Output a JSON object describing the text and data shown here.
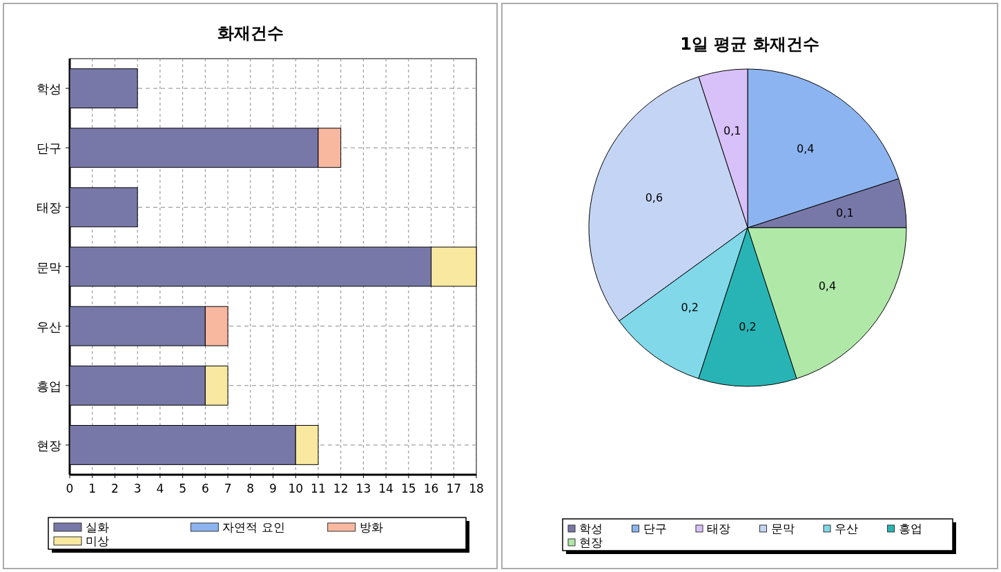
{
  "chart_data": [
    {
      "type": "bar",
      "orientation": "horizontal",
      "stacked": true,
      "title": "화재건수",
      "categories": [
        "학성",
        "단구",
        "태장",
        "문막",
        "우산",
        "흥업",
        "현장"
      ],
      "series": [
        {
          "name": "실화",
          "color": "#7878a8",
          "values": [
            3,
            11,
            3,
            16,
            6,
            6,
            10
          ]
        },
        {
          "name": "자연적 요인",
          "color": "#8cb4f0",
          "values": [
            0,
            0,
            0,
            0,
            0,
            0,
            0
          ]
        },
        {
          "name": "방화",
          "color": "#f8b8a0",
          "values": [
            0,
            1,
            0,
            0,
            1,
            0,
            0
          ]
        },
        {
          "name": "미상",
          "color": "#f8e8a0",
          "values": [
            0,
            0,
            0,
            2,
            0,
            1,
            1
          ]
        }
      ],
      "xlim": [
        0,
        18
      ],
      "xticks": [
        0,
        1,
        2,
        3,
        4,
        5,
        6,
        7,
        8,
        9,
        10,
        11,
        12,
        13,
        14,
        15,
        16,
        17,
        18
      ],
      "grid": true,
      "legend": "bottom"
    },
    {
      "type": "pie",
      "title": "1일 평균  화재건수",
      "categories": [
        "학성",
        "단구",
        "태장",
        "문막",
        "우산",
        "흥업",
        "현장"
      ],
      "values": [
        0.1,
        0.4,
        0.1,
        0.6,
        0.2,
        0.2,
        0.4
      ],
      "value_labels": [
        "0,1",
        "0,4",
        "0,1",
        "0,6",
        "0,2",
        "0,2",
        "0,4"
      ],
      "colors": [
        "#7878a8",
        "#8cb4f0",
        "#d8c0f8",
        "#c4d4f4",
        "#80d8e8",
        "#28b4b4",
        "#b0e8a8"
      ],
      "legend": "bottom"
    }
  ]
}
